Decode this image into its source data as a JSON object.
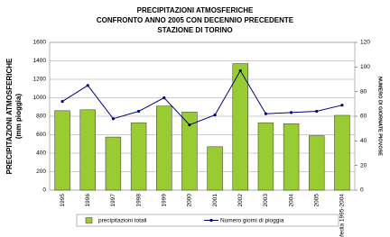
{
  "chart_data": {
    "type": "bar-line",
    "title": [
      "PRECIPITAZIONI ATMOSFERICHE",
      "CONFRONTO ANNO 2005 CON DECENNIO PRECEDENTE",
      "STAZIONE DI TORINO"
    ],
    "y_label": [
      "PRECIPITAZIONI ATMOSFERICHE",
      "(mm pioggia)"
    ],
    "y2_label": "NUMERO DI GIORNATE PIOVOSE",
    "categories": [
      "1995",
      "1996",
      "1997",
      "1998",
      "1999",
      "2000",
      "2001",
      "2002",
      "2003",
      "2004",
      "2005",
      "Media 1995-2004"
    ],
    "series": [
      {
        "name": "precipitazioni totali",
        "color": "#99cc33",
        "kind": "bar",
        "values": [
          860,
          870,
          575,
          730,
          910,
          845,
          470,
          1370,
          730,
          720,
          590,
          810
        ]
      },
      {
        "name": "Numero giorni di pioggia",
        "color": "#000080",
        "kind": "line",
        "axis": "y2",
        "values": [
          72,
          85,
          58,
          64,
          75,
          53,
          61,
          97,
          62,
          63,
          64,
          69
        ]
      }
    ],
    "ylim": [
      0,
      1600
    ],
    "yticks": [
      0,
      200,
      400,
      600,
      800,
      1000,
      1200,
      1400,
      1600
    ],
    "y2lim": [
      0,
      120
    ],
    "y2ticks": [
      0,
      20,
      40,
      60,
      80,
      100,
      120
    ],
    "grid": true
  }
}
